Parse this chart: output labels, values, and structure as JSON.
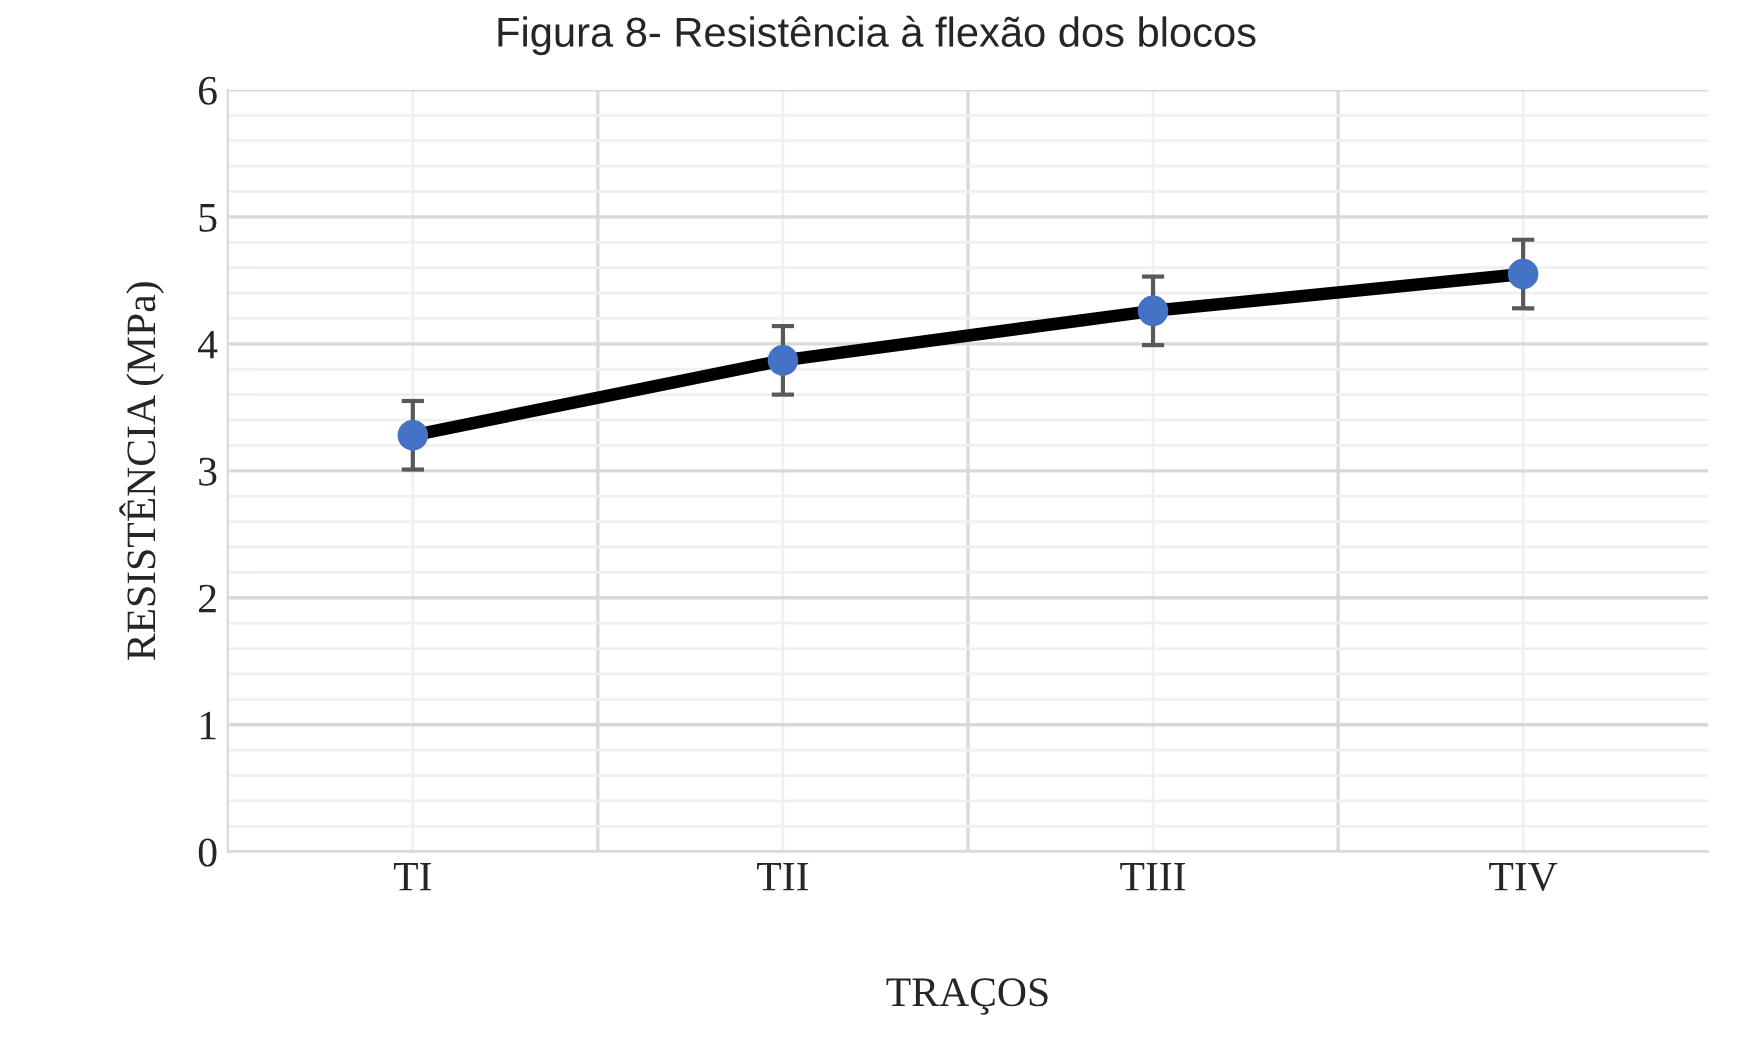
{
  "chart_data": {
    "type": "line",
    "title": "Figura 8- Resistência à flexão dos blocos",
    "xlabel": "TRAÇOS",
    "ylabel": "RESISTÊNCIA (MPa)",
    "categories": [
      "TI",
      "TII",
      "TIII",
      "TIV"
    ],
    "series": [
      {
        "color": "#000000",
        "values": [
          3.28,
          3.87,
          4.26,
          4.55
        ],
        "errors": [
          0.27,
          0.27,
          0.27,
          0.27
        ]
      }
    ],
    "marker": "circle",
    "ylim": [
      0,
      6
    ],
    "yticks": [
      0,
      1,
      2,
      3,
      4,
      5,
      6
    ],
    "grid": true,
    "legend": false
  }
}
